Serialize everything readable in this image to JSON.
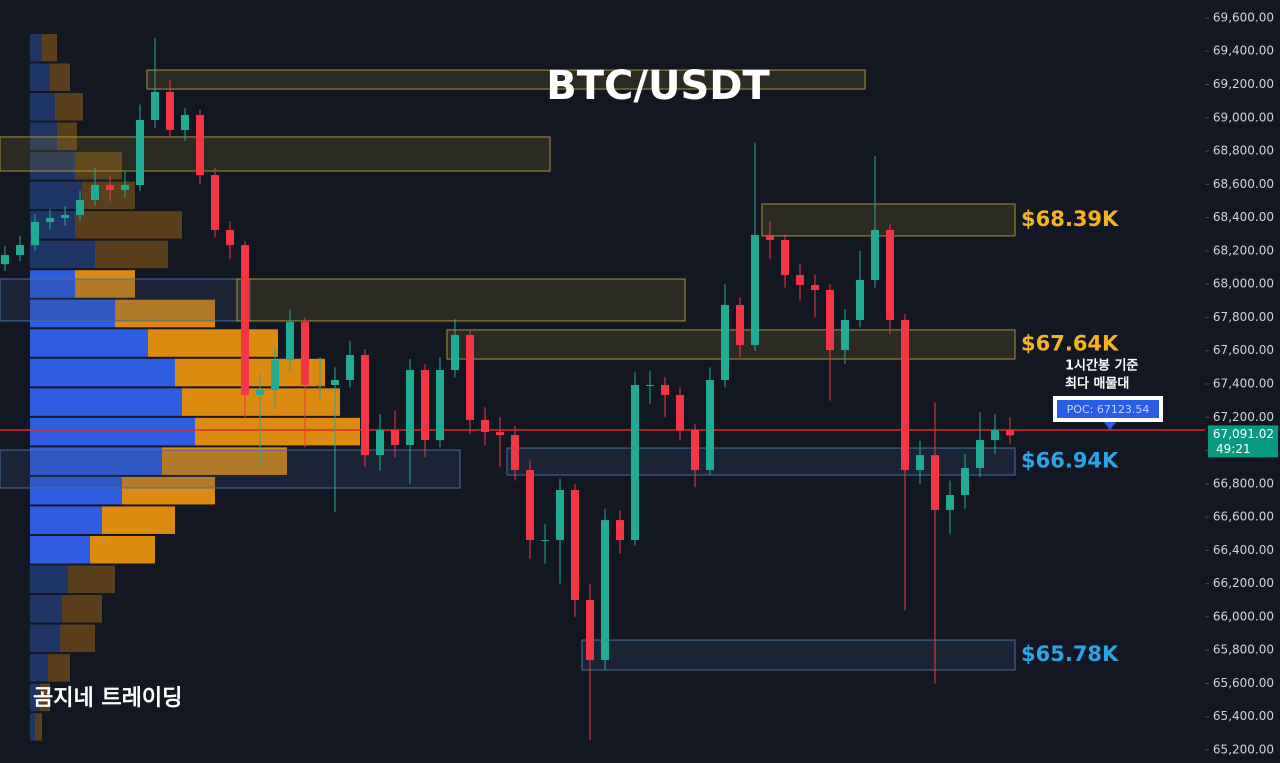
{
  "chart_data": {
    "type": "candlestick",
    "title": "BTC/USDT",
    "watermark": "곰지네 트레이딩",
    "note": [
      "1시간봉 기준",
      "최다 매물대"
    ],
    "ylim": [
      65122,
      69708
    ],
    "yticks": [
      {
        "value": 65200,
        "label": "65,200.00"
      },
      {
        "value": 65400,
        "label": "65,400.00"
      },
      {
        "value": 65600,
        "label": "65,600.00"
      },
      {
        "value": 65800,
        "label": "65,800.00"
      },
      {
        "value": 66000,
        "label": "66,000.00"
      },
      {
        "value": 66200,
        "label": "66,200.00"
      },
      {
        "value": 66400,
        "label": "66,400.00"
      },
      {
        "value": 66600,
        "label": "66,600.00"
      },
      {
        "value": 66800,
        "label": "66,800.00"
      },
      {
        "value": 67000,
        "label": "67,000.00"
      },
      {
        "value": 67200,
        "label": "67,200.00"
      },
      {
        "value": 67400,
        "label": "67,400.00"
      },
      {
        "value": 67600,
        "label": "67,600.00"
      },
      {
        "value": 67800,
        "label": "67,800.00"
      },
      {
        "value": 68000,
        "label": "68,000.00"
      },
      {
        "value": 68200,
        "label": "68,200.00"
      },
      {
        "value": 68400,
        "label": "68,400.00"
      },
      {
        "value": 68600,
        "label": "68,600.00"
      },
      {
        "value": 68800,
        "label": "68,800.00"
      },
      {
        "value": 69000,
        "label": "69,000.00"
      },
      {
        "value": 69200,
        "label": "69,200.00"
      },
      {
        "value": 69400,
        "label": "69,400.00"
      },
      {
        "value": 69600,
        "label": "69,600.00"
      }
    ],
    "up_color": "#22ab94",
    "down_color": "#f23645",
    "open": [
      68120,
      68175,
      68235,
      68374,
      68398,
      68416,
      68506,
      68596,
      68566,
      68596,
      68987,
      69155,
      68927,
      69017,
      68656,
      68326,
      68235,
      67334,
      67364,
      67544,
      67773,
      67394,
      67394,
      67424,
      67574,
      66973,
      67123,
      67033,
      67484,
      67063,
      67484,
      67695,
      67184,
      67111,
      67093,
      66883,
      66462,
      66462,
      66763,
      66102,
      65741,
      66582,
      66462,
      67394,
      67394,
      67334,
      67123,
      66883,
      67424,
      67875,
      67634,
      68296,
      68266,
      68055,
      67995,
      67965,
      67604,
      67785,
      68025,
      68326,
      67785,
      66883,
      66973,
      66643,
      66733,
      66895,
      67063,
      67123
    ],
    "high": [
      68230,
      68290,
      68420,
      68450,
      68470,
      68560,
      68700,
      68650,
      68680,
      69080,
      69480,
      69230,
      69060,
      69050,
      68700,
      68380,
      68260,
      67460,
      67620,
      67850,
      67800,
      67560,
      67500,
      67660,
      67610,
      67220,
      67240,
      67550,
      67520,
      67560,
      67790,
      67720,
      67260,
      67200,
      67150,
      66940,
      66560,
      66830,
      66800,
      66200,
      66650,
      66640,
      67470,
      67480,
      67440,
      67380,
      67160,
      67500,
      68000,
      67920,
      68850,
      68380,
      68300,
      68120,
      68060,
      68000,
      67850,
      68200,
      68770,
      68360,
      67820,
      67060,
      67290,
      66820,
      66980,
      67230,
      67220,
      67200
    ],
    "low": [
      68080,
      68140,
      68200,
      68330,
      68350,
      68380,
      68470,
      68500,
      68520,
      68560,
      68940,
      68880,
      68860,
      68600,
      68280,
      68150,
      67200,
      66900,
      67250,
      67480,
      67020,
      67300,
      66630,
      67380,
      66900,
      66880,
      66960,
      66800,
      66960,
      67020,
      67440,
      67100,
      67030,
      66900,
      66820,
      66350,
      66320,
      66200,
      66000,
      65260,
      65680,
      66380,
      66430,
      67280,
      67200,
      67060,
      66780,
      66850,
      67380,
      67560,
      67600,
      68150,
      67980,
      67900,
      67800,
      67300,
      67520,
      67740,
      67980,
      67700,
      66040,
      66800,
      65600,
      66500,
      66650,
      66840,
      66980,
      67040
    ],
    "close": [
      68175,
      68235,
      68374,
      68398,
      68416,
      68506,
      68596,
      68566,
      68596,
      68987,
      69155,
      68927,
      69017,
      68656,
      68326,
      68235,
      67334,
      67364,
      67544,
      67773,
      67394,
      67394,
      67424,
      67574,
      66973,
      67123,
      67033,
      67484,
      67063,
      67484,
      67695,
      67184,
      67111,
      67093,
      66883,
      66462,
      66462,
      66763,
      66102,
      65741,
      66582,
      66462,
      67394,
      67394,
      67334,
      67123,
      66883,
      67424,
      67875,
      67634,
      68296,
      68266,
      68055,
      67995,
      67965,
      67604,
      67785,
      68025,
      68326,
      67785,
      66883,
      66973,
      66643,
      66733,
      66895,
      67063,
      67123,
      67091
    ],
    "zones": [
      {
        "kind": "supply",
        "start": 10,
        "end": 57,
        "low": 69173,
        "high": 69287
      },
      {
        "kind": "supply",
        "start": 0,
        "end": 36,
        "low": 68680,
        "high": 68885
      },
      {
        "kind": "supply",
        "start": 51,
        "end": 67,
        "low": 68290,
        "high": 68482,
        "label": "$68.39K"
      },
      {
        "kind": "demand",
        "start": 0,
        "end": 16,
        "low": 67779,
        "high": 68031
      },
      {
        "kind": "supply",
        "start": 16,
        "end": 45,
        "low": 67779,
        "high": 68031
      },
      {
        "kind": "supply",
        "start": 30,
        "end": 67,
        "low": 67550,
        "high": 67725,
        "label": "$67.64K"
      },
      {
        "kind": "demand",
        "start": 0,
        "end": 30,
        "low": 66775,
        "high": 67003
      },
      {
        "kind": "demand",
        "start": 34,
        "end": 67,
        "low": 66853,
        "high": 67015,
        "label": "$66.94K"
      },
      {
        "kind": "demand",
        "start": 39,
        "end": 67,
        "low": 65681,
        "high": 65861,
        "label": "$65.78K"
      }
    ],
    "volume_profile": {
      "bins": [
        65250,
        65427.5,
        65605,
        65782.5,
        65960,
        66137.5,
        66315,
        66492.5,
        66670,
        66847.5,
        67025,
        67202.5,
        67380,
        67557.5,
        67735,
        67912.5,
        68090,
        68267.5,
        68445,
        68622.5,
        68800,
        68977.5,
        69155,
        69332.5,
        69510
      ],
      "buy": [
        5,
        10,
        18,
        30,
        32,
        38,
        60,
        72,
        92,
        132,
        165,
        152,
        145,
        118,
        85,
        45,
        65,
        45,
        52,
        45,
        27,
        25,
        20,
        12
      ],
      "sell": [
        7,
        10,
        22,
        35,
        40,
        47,
        65,
        73,
        93,
        125,
        165,
        158,
        150,
        130,
        100,
        60,
        73,
        107,
        53,
        47,
        20,
        28,
        20,
        15
      ],
      "value_area_low": 66315,
      "value_area_high": 68090
    },
    "poc": {
      "value": 67123.54,
      "label": "POC: 67123.54"
    },
    "last_price": {
      "value": 67091.02,
      "label": "67,091.02"
    },
    "countdown": "49:21"
  }
}
